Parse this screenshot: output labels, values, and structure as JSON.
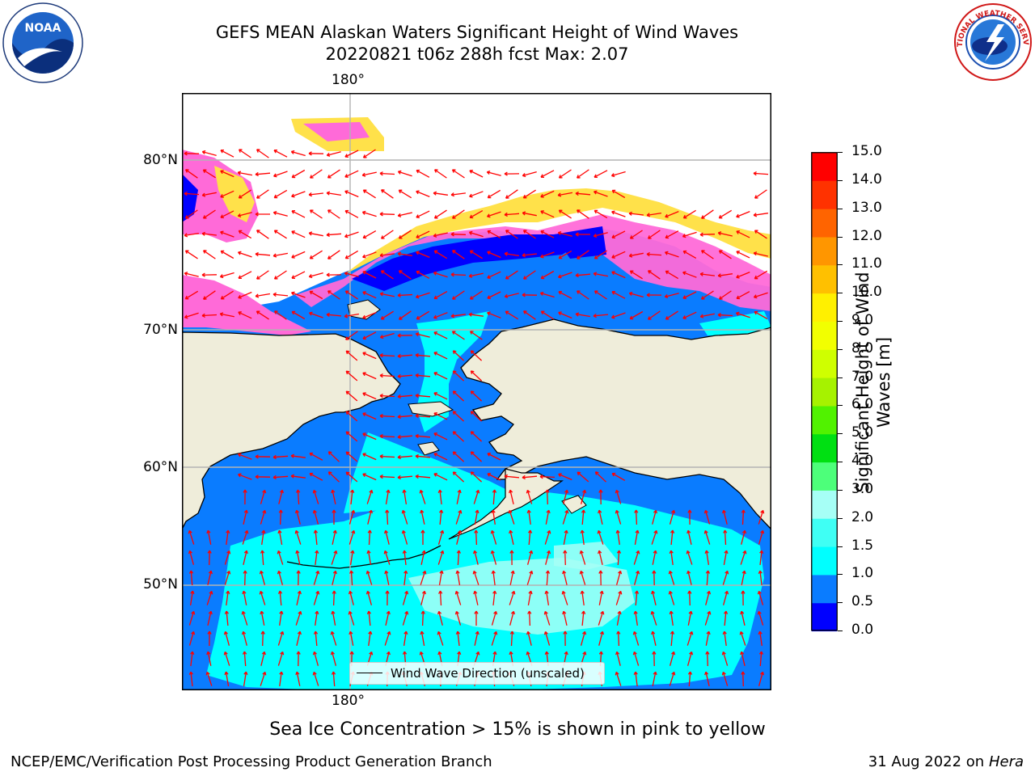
{
  "header": {
    "title_line1": "GEFS MEAN Alaskan Waters Significant Height of Wind Waves",
    "title_line2": "20220821 t06z 288h fcst   Max: 2.07"
  },
  "logos": {
    "left": {
      "icon": "noaa-logo",
      "text": "NOAA"
    },
    "right": {
      "icon": "national-weather-service-logo",
      "text": "NATIONAL WEATHER SERVICE"
    }
  },
  "map": {
    "lon_label_top": "180°",
    "lon_label_bottom": "180°",
    "lat_labels": [
      "80°N",
      "70°N",
      "60°N",
      "50°N"
    ],
    "legend_label": "Wind Wave Direction (unscaled)",
    "colors": {
      "land": "#efedda",
      "ice_pink": "#ff6ad8",
      "ice_yellow": "#ffe14a",
      "arrow": "#ff0000",
      "coast": "#000000",
      "grid": "#b3b3b3"
    }
  },
  "colorbar": {
    "label_line1": "Significant Height of Wind",
    "label_line2": "Waves [m]",
    "ticks": [
      "0.0",
      "0.5",
      "1.0",
      "1.5",
      "2.0",
      "3.0",
      "4.0",
      "5.0",
      "6.0",
      "7.0",
      "8.0",
      "9.0",
      "10.0",
      "11.0",
      "12.0",
      "13.0",
      "14.0",
      "15.0"
    ],
    "colors": [
      "#0000ff",
      "#0a7cff",
      "#00ffff",
      "#3ffff4",
      "#a6fff6",
      "#4dff7a",
      "#00e012",
      "#51f200",
      "#a6f200",
      "#cfff00",
      "#f2ff00",
      "#fff000",
      "#ffc000",
      "#ff9600",
      "#ff6400",
      "#ff3200",
      "#ff0000"
    ]
  },
  "caption": "Sea Ice Concentration > 15% is shown in pink to yellow",
  "footer": {
    "left": "NCEP/EMC/Verification Post Processing Product Generation Branch",
    "right_date": "31 Aug 2022 on",
    "right_host": "Hera"
  }
}
